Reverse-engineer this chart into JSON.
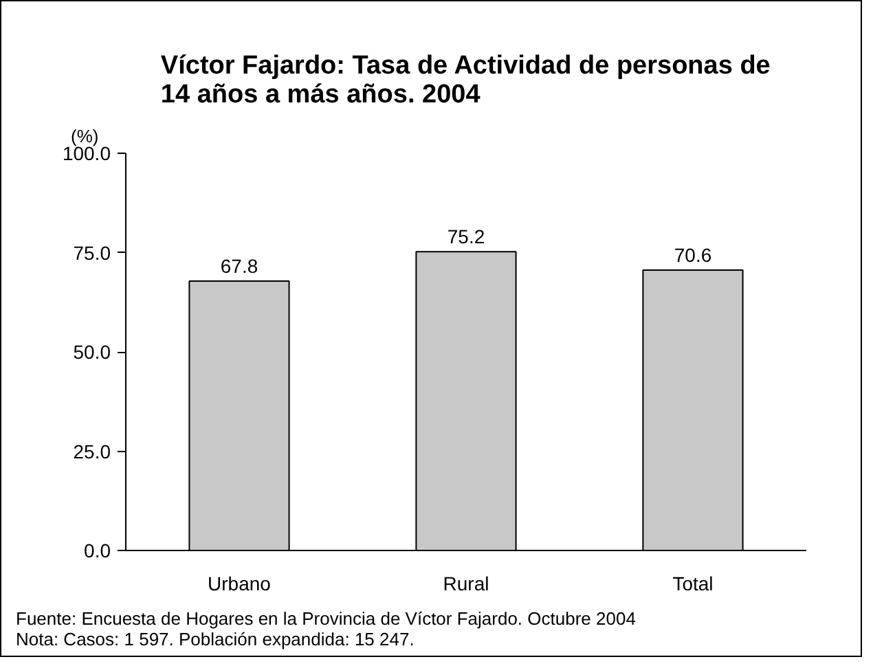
{
  "chart_data": {
    "type": "bar",
    "title": "Víctor Fajardo: Tasa de Actividad de personas de\n14 años a más años. 2004",
    "ylabel": "(%)",
    "categories": [
      "Urbano",
      "Rural",
      "Total"
    ],
    "values": [
      67.8,
      75.2,
      70.6
    ],
    "color": "#c8c8c8",
    "ylim": [
      0,
      100
    ],
    "yticks": [
      {
        "value": 0,
        "label": "0.0"
      },
      {
        "value": 25,
        "label": "25.0"
      },
      {
        "value": 50,
        "label": "50.0"
      },
      {
        "value": 75,
        "label": "75.0"
      },
      {
        "value": 100,
        "label": "100.0"
      }
    ],
    "data_labels": true,
    "grid": false,
    "annotations": [
      "Fuente: Encuesta de Hogares en la Provincia de Víctor Fajardo. Octubre 2004",
      "Nota: Casos: 1 597. Población expandida: 15 247."
    ]
  }
}
